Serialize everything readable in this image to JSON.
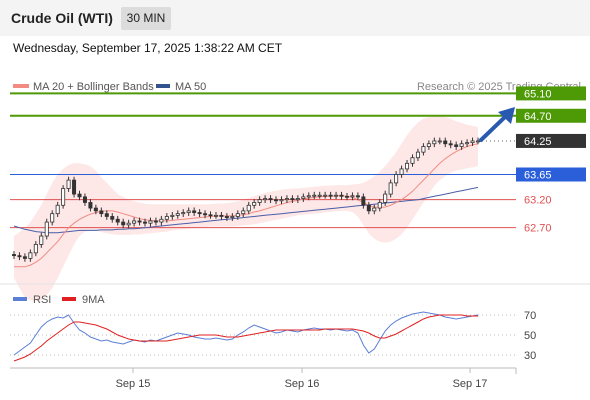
{
  "header": {
    "title": "Crude Oil (WTI)",
    "interval": "30 MIN"
  },
  "timestamp": "Wednesday, September 17, 2025 1:38:22 AM CET",
  "legend": {
    "ma20": "MA 20 + Bollinger Bands",
    "ma50": "MA 50"
  },
  "copyright": "Research © 2025 Trading Central",
  "colors": {
    "candle": "#333333",
    "ma20": "#f28b82",
    "ma50": "#4a5ea8",
    "band_fill": "#fde3e3",
    "resistance": "#4e9a06",
    "pivot": "#2b5fd9",
    "support": "#e05252",
    "current": "#333333",
    "rsi": "#5b7fd6",
    "rsi_ma": "#e02020"
  },
  "chart_data": [
    {
      "type": "candlestick",
      "x_ticks": [
        "Sep 15",
        "Sep 16",
        "Sep 17"
      ],
      "ylim": [
        61.8,
        65.25
      ],
      "levels": [
        {
          "label": "65.10",
          "value": 65.1,
          "kind": "resistance"
        },
        {
          "label": "64.70",
          "value": 64.7,
          "kind": "resistance"
        },
        {
          "label": "64.25",
          "value": 64.25,
          "kind": "current"
        },
        {
          "label": "63.65",
          "value": 63.65,
          "kind": "pivot"
        },
        {
          "label": "63.20",
          "value": 63.2,
          "kind": "support"
        },
        {
          "label": "62.70",
          "value": 62.7,
          "kind": "support"
        }
      ],
      "close": [
        62.2,
        62.18,
        62.15,
        62.25,
        62.4,
        62.55,
        62.8,
        62.95,
        63.1,
        63.4,
        63.55,
        63.3,
        63.25,
        63.15,
        63.05,
        63.0,
        62.95,
        62.9,
        62.85,
        62.8,
        62.75,
        62.78,
        62.82,
        62.8,
        62.78,
        62.82,
        62.8,
        62.85,
        62.9,
        62.92,
        62.95,
        62.97,
        63.0,
        62.97,
        62.95,
        62.93,
        62.92,
        62.92,
        62.9,
        62.88,
        62.9,
        62.95,
        63.0,
        63.1,
        63.15,
        63.2,
        63.22,
        63.2,
        63.18,
        63.2,
        63.22,
        63.2,
        63.22,
        63.25,
        63.27,
        63.28,
        63.28,
        63.28,
        63.27,
        63.28,
        63.26,
        63.25,
        63.27,
        63.25,
        63.1,
        63.0,
        63.05,
        63.15,
        63.3,
        63.5,
        63.65,
        63.75,
        63.85,
        63.95,
        64.05,
        64.15,
        64.2,
        64.25,
        64.25,
        64.2,
        64.18,
        64.15,
        64.2,
        64.22,
        64.25,
        64.25
      ],
      "ma20": [
        62.0,
        62.0,
        62.0,
        62.03,
        62.08,
        62.15,
        62.25,
        62.35,
        62.45,
        62.58,
        62.7,
        62.78,
        62.85,
        62.9,
        62.94,
        62.97,
        62.99,
        63.0,
        63.0,
        62.98,
        62.95,
        62.92,
        62.89,
        62.86,
        62.84,
        62.83,
        62.82,
        62.82,
        62.82,
        62.83,
        62.84,
        62.85,
        62.86,
        62.87,
        62.88,
        62.89,
        62.9,
        62.91,
        62.91,
        62.91,
        62.91,
        62.92,
        62.93,
        62.95,
        62.98,
        63.0,
        63.03,
        63.06,
        63.09,
        63.12,
        63.15,
        63.17,
        63.19,
        63.21,
        63.23,
        63.24,
        63.25,
        63.26,
        63.26,
        63.27,
        63.27,
        63.26,
        63.24,
        63.2,
        63.15,
        63.1,
        63.07,
        63.06,
        63.07,
        63.1,
        63.15,
        63.2,
        63.27,
        63.35,
        63.45,
        63.55,
        63.65,
        63.75,
        63.85,
        63.93,
        64.0,
        64.06,
        64.11,
        64.15,
        64.18,
        64.2
      ],
      "band_upper": [
        62.55,
        62.62,
        62.7,
        62.8,
        62.95,
        63.1,
        63.3,
        63.5,
        63.65,
        63.75,
        63.82,
        63.85,
        63.85,
        63.83,
        63.8,
        63.72,
        63.6,
        63.5,
        63.4,
        63.3,
        63.25,
        63.2,
        63.17,
        63.15,
        63.13,
        63.12,
        63.12,
        63.12,
        63.12,
        63.12,
        63.12,
        63.12,
        63.12,
        63.12,
        63.12,
        63.12,
        63.12,
        63.13,
        63.13,
        63.14,
        63.15,
        63.17,
        63.2,
        63.23,
        63.26,
        63.29,
        63.32,
        63.34,
        63.36,
        63.38,
        63.39,
        63.4,
        63.4,
        63.41,
        63.42,
        63.43,
        63.44,
        63.45,
        63.45,
        63.46,
        63.46,
        63.46,
        63.47,
        63.48,
        63.5,
        63.55,
        63.62,
        63.7,
        63.8,
        63.92,
        64.05,
        64.2,
        64.35,
        64.48,
        64.58,
        64.65,
        64.68,
        64.7,
        64.7,
        64.68,
        64.65,
        64.6,
        64.57,
        64.54,
        64.52,
        64.5
      ],
      "band_lower": [
        61.8,
        61.62,
        61.45,
        61.4,
        61.38,
        61.4,
        61.5,
        61.62,
        61.8,
        62.0,
        62.2,
        62.4,
        62.55,
        62.63,
        62.65,
        62.65,
        62.62,
        62.6,
        62.58,
        62.57,
        62.57,
        62.57,
        62.58,
        62.58,
        62.59,
        62.6,
        62.61,
        62.62,
        62.63,
        62.65,
        62.66,
        62.67,
        62.68,
        62.69,
        62.7,
        62.71,
        62.72,
        62.72,
        62.72,
        62.72,
        62.72,
        62.73,
        62.74,
        62.75,
        62.76,
        62.78,
        62.8,
        62.82,
        62.84,
        62.86,
        62.88,
        62.9,
        62.92,
        62.93,
        62.94,
        62.95,
        62.96,
        62.97,
        62.98,
        62.99,
        63.0,
        63.0,
        62.98,
        62.9,
        62.75,
        62.6,
        62.5,
        62.45,
        62.43,
        62.45,
        62.5,
        62.58,
        62.7,
        62.85,
        63.0,
        63.15,
        63.3,
        63.45,
        63.55,
        63.62,
        63.68,
        63.72,
        63.74,
        63.76,
        63.78,
        63.8
      ],
      "ma50": [
        62.73,
        62.7,
        62.67,
        62.65,
        62.63,
        62.62,
        62.61,
        62.61,
        62.61,
        62.62,
        62.63,
        62.64,
        62.65,
        62.65,
        62.65,
        62.65,
        62.66,
        62.66,
        62.66,
        62.67,
        62.67,
        62.68,
        62.68,
        62.69,
        62.7,
        62.71,
        62.72,
        62.73,
        62.74,
        62.75,
        62.76,
        62.77,
        62.78,
        62.79,
        62.8,
        62.81,
        62.82,
        62.83,
        62.84,
        62.85,
        62.86,
        62.87,
        62.88,
        62.89,
        62.9,
        62.91,
        62.92,
        62.93,
        62.94,
        62.95,
        62.96,
        62.97,
        62.98,
        62.99,
        63.0,
        63.01,
        63.02,
        63.03,
        63.04,
        63.05,
        63.06,
        63.07,
        63.08,
        63.09,
        63.1,
        63.11,
        63.12,
        63.13,
        63.14,
        63.15,
        63.16,
        63.17,
        63.18,
        63.19,
        63.2,
        63.22,
        63.24,
        63.26,
        63.28,
        63.3,
        63.32,
        63.34,
        63.36,
        63.38,
        63.4,
        63.42
      ]
    },
    {
      "type": "line",
      "legend": [
        "RSI",
        "9MA"
      ],
      "yticks": [
        70,
        50,
        30
      ],
      "ylim": [
        20,
        80
      ],
      "rsi": [
        30,
        34,
        38,
        42,
        50,
        58,
        63,
        66,
        68,
        67,
        70,
        62,
        55,
        52,
        48,
        46,
        44,
        45,
        43,
        42,
        41,
        43,
        45,
        44,
        43,
        45,
        44,
        46,
        48,
        50,
        52,
        51,
        50,
        48,
        47,
        46,
        46,
        47,
        46,
        45,
        46,
        50,
        53,
        57,
        60,
        58,
        56,
        54,
        52,
        53,
        55,
        54,
        53,
        55,
        56,
        57,
        56,
        56,
        55,
        56,
        55,
        54,
        55,
        52,
        40,
        32,
        36,
        45,
        54,
        60,
        64,
        67,
        69,
        71,
        72,
        73,
        72,
        71,
        70,
        68,
        67,
        66,
        67,
        68,
        69,
        70
      ],
      "ma9": [
        24,
        26,
        28,
        31,
        35,
        39,
        44,
        48,
        52,
        56,
        60,
        63,
        63,
        62,
        61,
        60,
        58,
        56,
        53,
        50,
        48,
        46,
        45,
        44,
        44,
        44,
        44,
        44,
        44,
        45,
        46,
        47,
        48,
        49,
        50,
        50,
        50,
        50,
        49,
        48,
        48,
        48,
        49,
        50,
        51,
        52,
        53,
        54,
        55,
        55,
        55,
        55,
        55,
        55,
        55,
        55,
        55,
        56,
        56,
        56,
        56,
        56,
        56,
        55,
        54,
        52,
        49,
        47,
        47,
        49,
        51,
        54,
        57,
        60,
        63,
        66,
        68,
        69,
        70,
        70,
        70,
        70,
        70,
        69,
        69,
        69
      ]
    }
  ]
}
